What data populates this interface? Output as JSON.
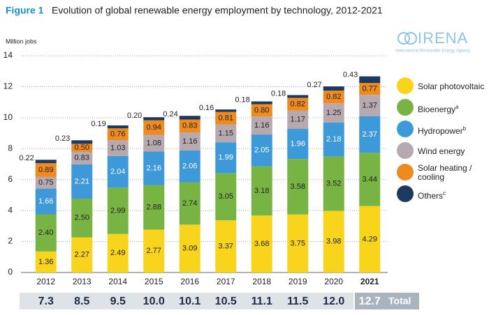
{
  "chart_data": {
    "type": "stacked_bar",
    "figure_label": "Figure 1",
    "title": "Evolution of global renewable energy employment by technology, 2012-2021",
    "y_label": "Million jobs",
    "logo": "IRENA",
    "logo_subtitle": "International Renewable Energy Agency",
    "categories": [
      "2012",
      "2013",
      "2014",
      "2015",
      "2016",
      "2017",
      "2018",
      "2019",
      "2020",
      "2021"
    ],
    "ylim": [
      0,
      14
    ],
    "yticks": [
      0,
      2,
      4,
      6,
      8,
      10,
      12,
      14
    ],
    "grid": true,
    "series": [
      {
        "name": "Solar photovoltaic",
        "color": "#f8d51c",
        "values": [
          1.36,
          2.27,
          2.49,
          2.77,
          3.09,
          3.37,
          3.68,
          3.75,
          3.98,
          4.29
        ],
        "value_labels": [
          "1.36",
          "2.27",
          "2.49",
          "2.77",
          "3.09",
          "3.37",
          "3.68",
          "3.75",
          "3.98",
          "4.29"
        ]
      },
      {
        "name": "Bioenergy",
        "footnote": "a",
        "color": "#78b444",
        "values": [
          2.4,
          2.5,
          2.99,
          2.88,
          2.74,
          3.05,
          3.18,
          3.58,
          3.52,
          3.44
        ],
        "value_labels": [
          "2.40",
          "2.50",
          "2.99",
          "2.88",
          "2.74",
          "3.05",
          "3.18",
          "3.58",
          "3.52",
          "3.44"
        ]
      },
      {
        "name": "Hydropower",
        "footnote": "b",
        "color": "#3d99d8",
        "values": [
          1.66,
          2.21,
          2.04,
          2.16,
          2.06,
          1.99,
          2.05,
          1.96,
          2.18,
          2.37
        ],
        "value_labels": [
          "1.66",
          "2.21",
          "2.04",
          "2.16",
          "2.06",
          "1.99",
          "2.05",
          "1.96",
          "2.18",
          "2.37"
        ]
      },
      {
        "name": "Wind energy",
        "color": "#b7a9b0",
        "values": [
          0.75,
          0.83,
          1.03,
          1.08,
          1.16,
          1.15,
          1.16,
          1.17,
          1.25,
          1.37
        ],
        "value_labels": [
          "0.75",
          "0.83",
          "1.03",
          "1.08",
          "1.16",
          "1.15",
          "1.16",
          "1.17",
          "1.25",
          "1.37"
        ]
      },
      {
        "name": "Solar heating / cooling",
        "color": "#ef8a1e",
        "values": [
          0.89,
          0.5,
          0.76,
          0.94,
          0.83,
          0.81,
          0.8,
          0.82,
          0.82,
          0.77
        ],
        "value_labels": [
          "0.89",
          "0.50",
          "0.76",
          "0.94",
          "0.83",
          "0.81",
          "0.80",
          "0.82",
          "0.82",
          "0.77"
        ]
      },
      {
        "name": "Others",
        "footnote": "c",
        "color": "#1d3a5e",
        "values": [
          0.22,
          0.23,
          0.19,
          0.2,
          0.24,
          0.16,
          0.18,
          0.18,
          0.27,
          0.43
        ],
        "value_labels": [
          "0.22",
          "0.23",
          "0.19",
          "0.20",
          "0.24",
          "0.16",
          "0.18",
          "0.18",
          "0.27",
          "0.43"
        ]
      }
    ],
    "totals": {
      "label": "Total",
      "values": [
        7.3,
        8.5,
        9.5,
        10.0,
        10.1,
        10.5,
        11.1,
        11.5,
        12.0,
        12.7
      ],
      "value_labels": [
        "7.3",
        "8.5",
        "9.5",
        "10.0",
        "10.1",
        "10.5",
        "11.1",
        "11.5",
        "12.0",
        "12.7"
      ]
    }
  }
}
